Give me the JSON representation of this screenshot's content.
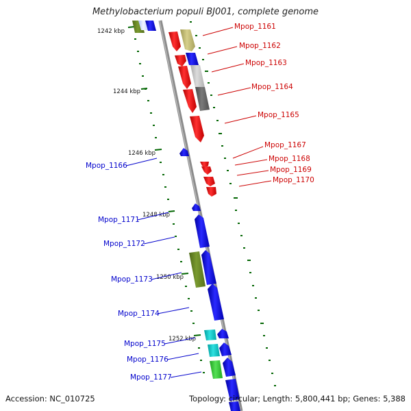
{
  "title": "Methylobacterium populi BJ001, complete genome",
  "accession": "Accession: NC_010725",
  "summary": "Topology: circular; Length: 5,800,441 bp; Genes: 5,388",
  "ticks": [
    "1242 kbp",
    "1244 kbp",
    "1246 kbp",
    "1248 kbp",
    "1250 kbp",
    "1252 kbp"
  ],
  "forward_genes": [
    "Mpop_1161",
    "Mpop_1162",
    "Mpop_1163",
    "Mpop_1164",
    "Mpop_1165",
    "Mpop_1167",
    "Mpop_1168",
    "Mpop_1169",
    "Mpop_1170"
  ],
  "reverse_genes": [
    "Mpop_1166",
    "Mpop_1171",
    "Mpop_1172",
    "Mpop_1173",
    "Mpop_1174",
    "Mpop_1175",
    "Mpop_1176",
    "Mpop_1177"
  ],
  "colors": {
    "forward_cds": "#ff0000",
    "reverse_cds": "#0000ff",
    "forward_label": "#cc0000",
    "reverse_label": "#0000cc",
    "tick": "#006400",
    "backbone": "#8c8c8c",
    "olive": "#6b8e23",
    "khaki": "#bdb76b",
    "light_gray": "#c0c0c0",
    "dark_gray": "#696969",
    "cyan": "#00cccc",
    "green": "#33cc33",
    "light_blue": "#d8e4ff"
  }
}
